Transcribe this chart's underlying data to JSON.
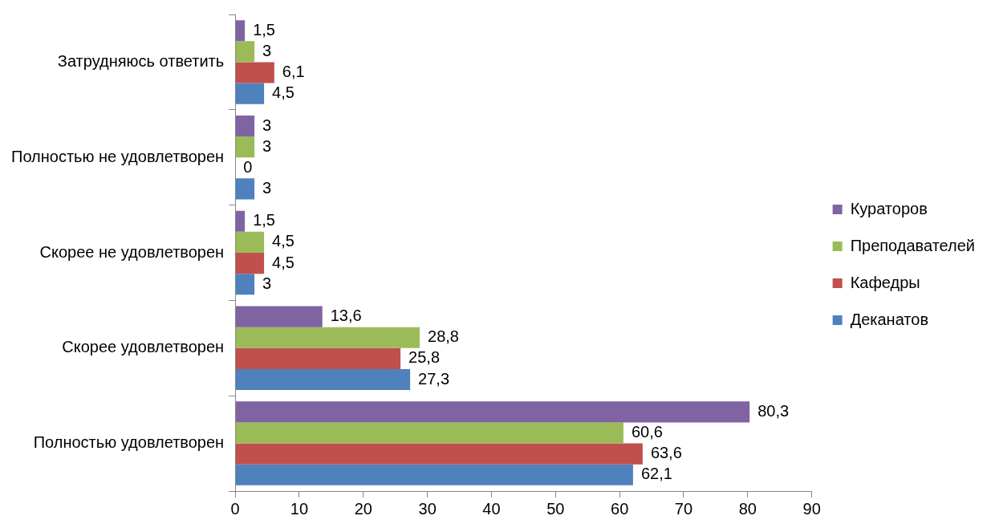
{
  "chart_data": {
    "type": "bar",
    "orientation": "horizontal",
    "categories": [
      "Затрудняюсь ответить",
      "Полностью не удовлетворен",
      "Скорее не удовлетворен",
      "Скорее удовлетворен",
      "Полностью удовлетворен"
    ],
    "series": [
      {
        "name": "Кураторов",
        "color": "#8064a2",
        "values": [
          1.5,
          3,
          1.5,
          13.6,
          80.3
        ],
        "value_labels": [
          "1,5",
          "3",
          "1,5",
          "13,6",
          "80,3"
        ]
      },
      {
        "name": "Преподавателей",
        "color": "#9bbb59",
        "values": [
          3,
          3,
          4.5,
          28.8,
          60.6
        ],
        "value_labels": [
          "3",
          "3",
          "4,5",
          "28,8",
          "60,6"
        ]
      },
      {
        "name": "Кафедры",
        "color": "#c0504d",
        "values": [
          6.1,
          0,
          4.5,
          25.8,
          63.6
        ],
        "value_labels": [
          "6,1",
          "0",
          "4,5",
          "25,8",
          "63,6"
        ]
      },
      {
        "name": "Деканатов",
        "color": "#4f81bd",
        "values": [
          4.5,
          3,
          3,
          27.3,
          62.1
        ],
        "value_labels": [
          "4,5",
          "3",
          "3",
          "27,3",
          "62,1"
        ]
      }
    ],
    "xlim": [
      0,
      90
    ],
    "xticks": [
      0,
      10,
      20,
      30,
      40,
      50,
      60,
      70,
      80,
      90
    ],
    "grid": false,
    "legend": "right"
  }
}
